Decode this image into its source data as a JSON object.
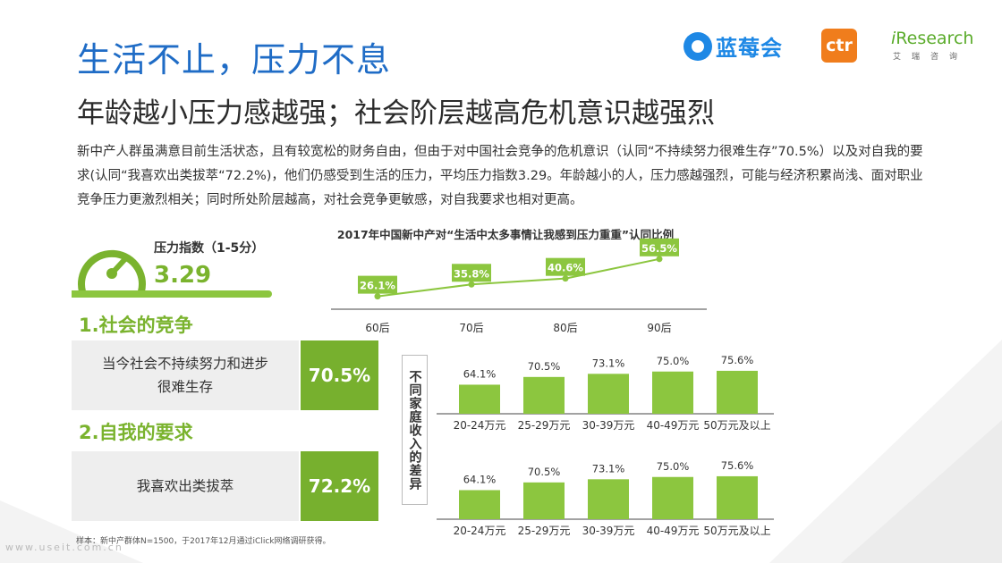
{
  "header": {
    "title": "生活不止，压力不息",
    "subtitle": "年龄越小压力感越强；社会阶层越高危机意识越强烈",
    "description": "新中产人群虽满意目前生活状态，且有较宽松的财务自由，但由于对中国社会竞争的危机意识（认同“不持续努力很难生存”70.5%）以及对自我的要求(认同“我喜欢出类拔萃“72.2%)，他们仍感受到生活的压力，平均压力指数3.29。年龄越小的人，压力感越强烈，可能与经济积累尚浅、面对职业竞争压力更激烈相关；同时所处阶层越高，对社会竞争更敏感，对自我要求也相对更高。"
  },
  "logos": {
    "lanmei": "蓝莓会",
    "ctr": "ctr",
    "iresearch_main": "Research",
    "iresearch_i": "i",
    "iresearch_sub": "艾瑞咨询"
  },
  "pressure": {
    "label": "压力指数（1-5分）",
    "value": "3.29",
    "gauge_level": 3.29,
    "gauge_max": 5
  },
  "section1": {
    "title": "1.社会的竞争",
    "statement_line1": "当今社会不持续努力和进步",
    "statement_line2": "很难生存",
    "percent": "70.5%"
  },
  "section2": {
    "title": "2.自我的要求",
    "statement": "我喜欢出类拔萃",
    "percent": "72.2%"
  },
  "income_label": "不同家庭收入的差异",
  "note": "样本：新中产群体N=1500，于2017年12月通过iClick网络调研获得。",
  "watermark": "www.useit.com.cn",
  "colors": {
    "title_blue": "#1f6cc6",
    "accent_green": "#7ab32e",
    "bar_green": "#8cc63f"
  },
  "chart_data": [
    {
      "type": "line",
      "title": "2017年中国新中产对“生活中太多事情让我感到压力重重”认同比例",
      "categories": [
        "60后",
        "70后",
        "80后",
        "90后"
      ],
      "values": [
        26.1,
        35.8,
        40.6,
        56.5
      ],
      "labels": [
        "26.1%",
        "35.8%",
        "40.6%",
        "56.5%"
      ],
      "xlabel": "",
      "ylabel": "",
      "grid": false,
      "legend": "none"
    },
    {
      "type": "bar",
      "title": "",
      "categories": [
        "20-24万元",
        "25-29万元",
        "30-39万元",
        "40-49万元",
        "50万元及以上"
      ],
      "values": [
        64.1,
        70.5,
        73.1,
        75.0,
        75.6
      ],
      "labels": [
        "64.1%",
        "70.5%",
        "73.1%",
        "75.0%",
        "75.6%"
      ],
      "xlabel": "",
      "ylabel": "",
      "ylim": [
        0,
        100
      ],
      "grid": false,
      "legend": "none"
    },
    {
      "type": "bar",
      "title": "",
      "categories": [
        "20-24万元",
        "25-29万元",
        "30-39万元",
        "40-49万元",
        "50万元及以上"
      ],
      "values": [
        64.1,
        70.5,
        73.1,
        75.0,
        75.6
      ],
      "labels": [
        "64.1%",
        "70.5%",
        "73.1%",
        "75.0%",
        "75.6%"
      ],
      "xlabel": "",
      "ylabel": "",
      "ylim": [
        0,
        100
      ],
      "grid": false,
      "legend": "none"
    }
  ]
}
